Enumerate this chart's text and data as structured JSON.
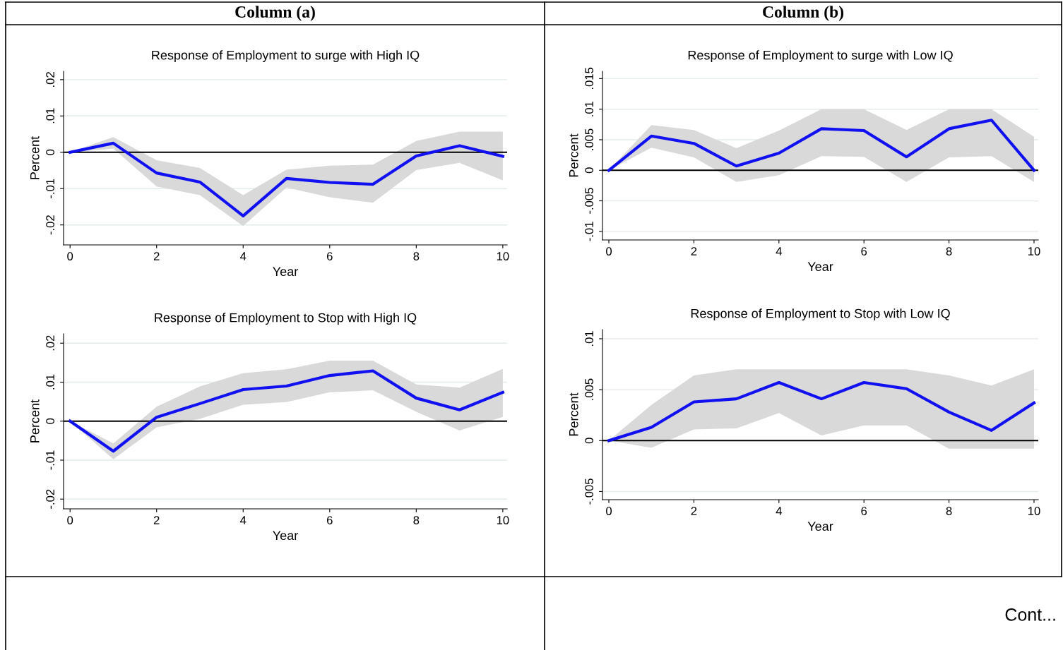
{
  "chart_data": [
    {
      "type": "line",
      "title": "Response of Employment to surge with High IQ",
      "xlabel": "Year",
      "ylabel": "Percent",
      "annotations": [
        "Column (a)"
      ],
      "x": [
        0,
        1,
        2,
        3,
        4,
        5,
        6,
        7,
        8,
        9,
        10
      ],
      "xlim": [
        -0.15,
        10.1
      ],
      "xticks": [
        0,
        2,
        4,
        6,
        8,
        10
      ],
      "ylim": [
        -0.0255,
        0.0223
      ],
      "yticks": [
        {
          "value": -0.02,
          "label": "-.02"
        },
        {
          "value": -0.01,
          "label": "-.01"
        },
        {
          "value": 0,
          "label": "0"
        },
        {
          "value": 0.01,
          "label": ".01"
        },
        {
          "value": 0.02,
          "label": ".02"
        }
      ],
      "grid": "y",
      "ref_lines": [
        {
          "axis": "y",
          "value": 0,
          "color": "#000000"
        }
      ],
      "series": [
        {
          "color": "#1010f0",
          "values": [
            0,
            0.0025,
            -0.0057,
            -0.0082,
            -0.0175,
            -0.0072,
            -0.0083,
            -0.0088,
            -0.001,
            0.0018,
            -0.0011
          ],
          "upper": [
            0,
            0.0042,
            -0.0022,
            -0.0043,
            -0.0118,
            -0.0048,
            -0.0037,
            -0.0034,
            0.0031,
            0.0057,
            0.0057
          ],
          "lower": [
            0,
            0.001,
            -0.0094,
            -0.0118,
            -0.0203,
            -0.0097,
            -0.0124,
            -0.0139,
            -0.0049,
            -0.0029,
            -0.0077
          ]
        }
      ]
    },
    {
      "type": "line",
      "title": "Response of Employment to surge with Low IQ",
      "xlabel": "Year",
      "ylabel": "Percent",
      "annotations": [
        "Column (b)"
      ],
      "x": [
        0,
        1,
        2,
        3,
        4,
        5,
        6,
        7,
        8,
        9,
        10
      ],
      "xlim": [
        -0.15,
        10.1
      ],
      "xticks": [
        0,
        2,
        4,
        6,
        8,
        10
      ],
      "ylim": [
        -0.0114,
        0.0162
      ],
      "yticks": [
        {
          "value": -0.01,
          "label": "-.01"
        },
        {
          "value": -0.005,
          "label": "-.005"
        },
        {
          "value": 0,
          "label": "0"
        },
        {
          "value": 0.005,
          "label": ".005"
        },
        {
          "value": 0.01,
          "label": ".01"
        },
        {
          "value": 0.015,
          "label": ".015"
        }
      ],
      "grid": "y",
      "ref_lines": [
        {
          "axis": "y",
          "value": 0,
          "color": "#000000"
        }
      ],
      "series": [
        {
          "color": "#1010f0",
          "values": [
            0,
            0.0056,
            0.0044,
            0.0007,
            0.0028,
            0.0068,
            0.0065,
            0.0022,
            0.0068,
            0.0082,
            0
          ],
          "upper": [
            0,
            0.0074,
            0.0066,
            0.0036,
            0.0065,
            0.01,
            0.01,
            0.0066,
            0.01,
            0.01,
            0.0055
          ],
          "lower": [
            0,
            0.0037,
            0.0021,
            -0.0019,
            -0.0008,
            0.0023,
            0.0022,
            -0.0019,
            0.0021,
            0.0023,
            -0.0019
          ]
        }
      ]
    },
    {
      "type": "line",
      "title": "Response of Employment to Stop with High IQ",
      "xlabel": "Year",
      "ylabel": "Percent",
      "x": [
        0,
        1,
        2,
        3,
        4,
        5,
        6,
        7,
        8,
        9,
        10
      ],
      "xlim": [
        -0.15,
        10.1
      ],
      "xticks": [
        0,
        2,
        4,
        6,
        8,
        10
      ],
      "ylim": [
        -0.0225,
        0.0224
      ],
      "yticks": [
        {
          "value": -0.02,
          "label": "-.02"
        },
        {
          "value": -0.01,
          "label": "-.01"
        },
        {
          "value": 0,
          "label": "0"
        },
        {
          "value": 0.01,
          "label": ".01"
        },
        {
          "value": 0.02,
          "label": ".02"
        }
      ],
      "grid": "y",
      "ref_lines": [
        {
          "axis": "y",
          "value": 0,
          "color": "#000000"
        }
      ],
      "series": [
        {
          "color": "#1010f0",
          "values": [
            0,
            -0.0077,
            0.001,
            0.0045,
            0.0081,
            0.009,
            0.0117,
            0.0129,
            0.0059,
            0.0029,
            0.0074
          ],
          "upper": [
            0,
            -0.0057,
            0.0037,
            0.0089,
            0.0123,
            0.0133,
            0.0155,
            0.0155,
            0.0094,
            0.0086,
            0.0134
          ],
          "lower": [
            0,
            -0.0098,
            -0.0016,
            0.0006,
            0.0042,
            0.0049,
            0.0074,
            0.0079,
            0.0024,
            -0.0024,
            0.0011
          ]
        }
      ]
    },
    {
      "type": "line",
      "title": "Response of Employment to Stop with Low IQ",
      "xlabel": "Year",
      "ylabel": "Percent",
      "annotations": [
        "Cont..."
      ],
      "x": [
        0,
        1,
        2,
        3,
        4,
        5,
        6,
        7,
        8,
        9,
        10
      ],
      "xlim": [
        -0.15,
        10.1
      ],
      "xticks": [
        0,
        2,
        4,
        6,
        8,
        10
      ],
      "ylim": [
        -0.0058,
        0.0109
      ],
      "yticks": [
        {
          "value": -0.005,
          "label": "-.005"
        },
        {
          "value": 0,
          "label": "0"
        },
        {
          "value": 0.005,
          "label": ".005"
        },
        {
          "value": 0.01,
          "label": ".01"
        }
      ],
      "grid": "y",
      "ref_lines": [
        {
          "axis": "y",
          "value": 0,
          "color": "#000000"
        }
      ],
      "series": [
        {
          "color": "#1010f0",
          "values": [
            0,
            0.0013,
            0.0038,
            0.0041,
            0.0057,
            0.0041,
            0.0057,
            0.0051,
            0.0028,
            0.001,
            0.0037
          ],
          "upper": [
            0,
            0.0035,
            0.0064,
            0.007,
            0.007,
            0.007,
            0.007,
            0.007,
            0.0064,
            0.0054,
            0.007
          ],
          "lower": [
            0,
            -0.0007,
            0.0011,
            0.0012,
            0.0027,
            0.0005,
            0.0015,
            0.0015,
            -0.0008,
            -0.0008,
            -0.0008
          ]
        }
      ]
    }
  ]
}
